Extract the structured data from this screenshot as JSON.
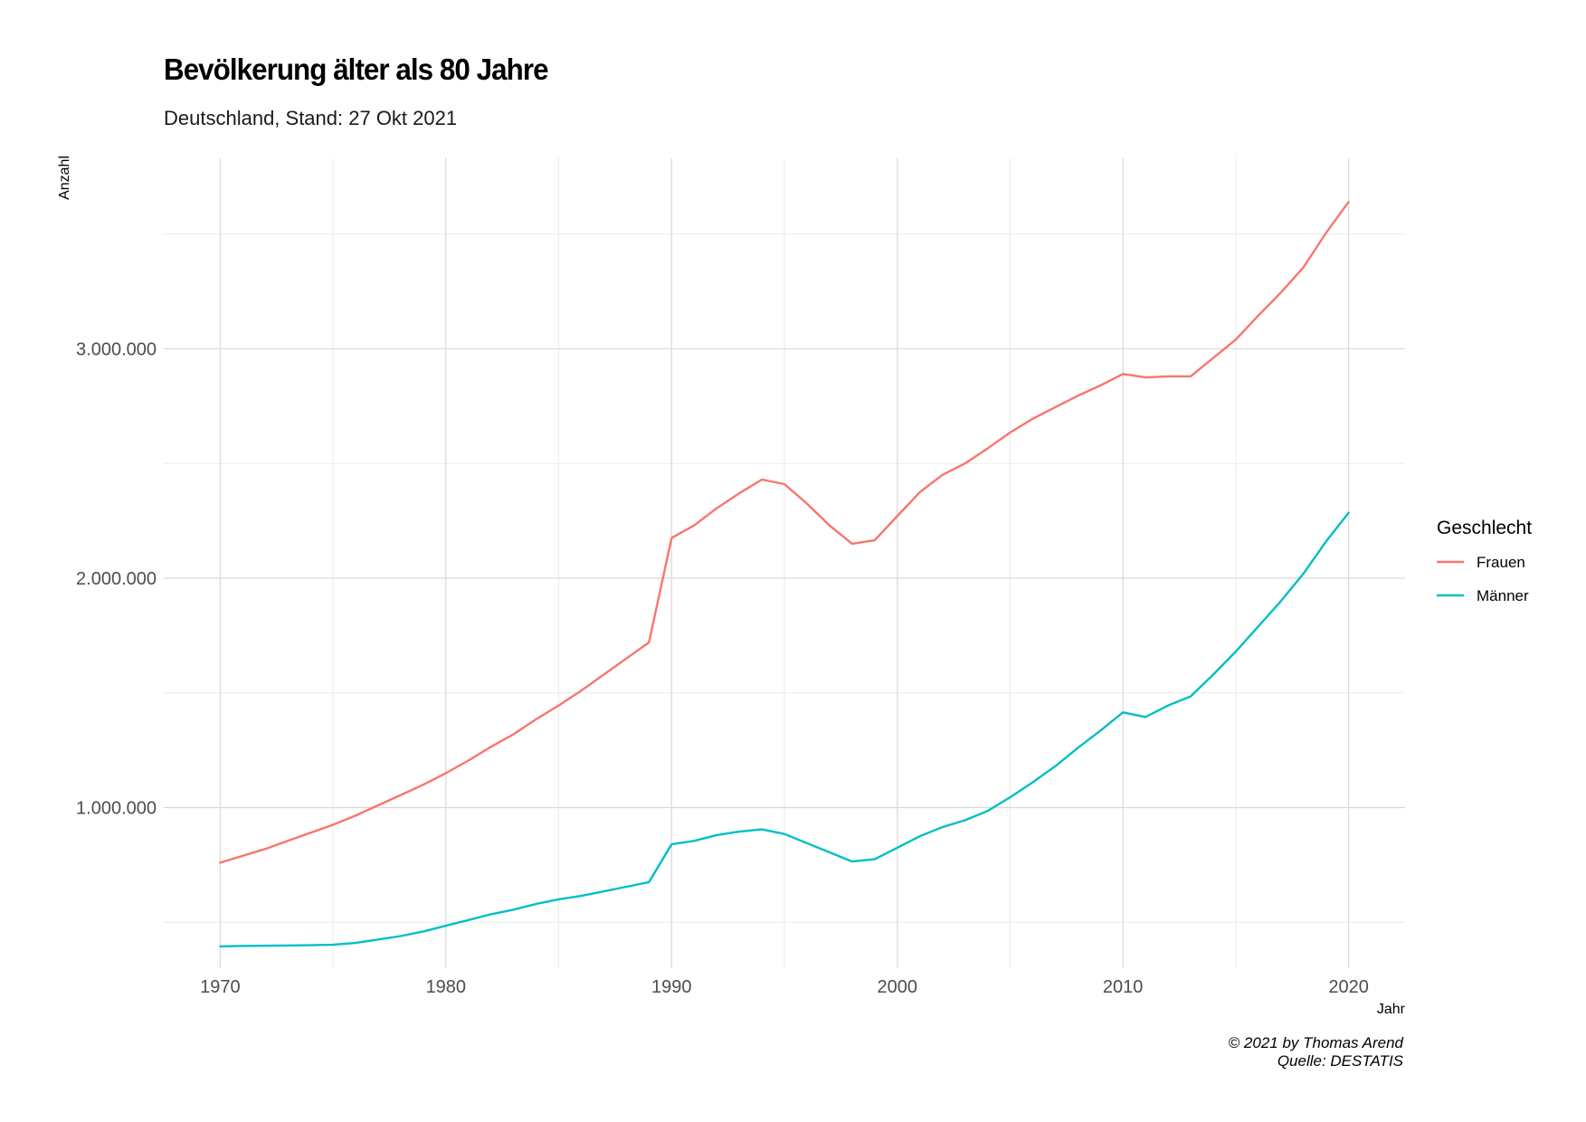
{
  "chart_data": {
    "type": "line",
    "title": "Bevölkerung älter als 80 Jahre",
    "subtitle": "Deutschland, Stand: 27 Okt 2021",
    "xlabel": "Jahr",
    "ylabel": "Anzahl",
    "xlim": [
      1967.5,
      2022.5
    ],
    "ylim": [
      300000,
      3830000
    ],
    "x_ticks": [
      1970,
      1980,
      1990,
      2000,
      2010,
      2020
    ],
    "x_tick_labels": [
      "1970",
      "1980",
      "1990",
      "2000",
      "2010",
      "2020"
    ],
    "y_ticks": [
      1000000,
      2000000,
      3000000
    ],
    "y_tick_labels": [
      "1.000.000",
      "2.000.000",
      "3.000.000"
    ],
    "grid": true,
    "legend": {
      "title": "Geschlecht",
      "position": "right"
    },
    "x": [
      1970,
      1971,
      1972,
      1973,
      1974,
      1975,
      1976,
      1977,
      1978,
      1979,
      1980,
      1981,
      1982,
      1983,
      1984,
      1985,
      1986,
      1987,
      1988,
      1989,
      1990,
      1991,
      1992,
      1993,
      1994,
      1995,
      1996,
      1997,
      1998,
      1999,
      2000,
      2001,
      2002,
      2003,
      2004,
      2005,
      2006,
      2007,
      2008,
      2009,
      2010,
      2011,
      2012,
      2013,
      2014,
      2015,
      2016,
      2017,
      2018,
      2019,
      2020
    ],
    "series": [
      {
        "name": "Frauen",
        "color": "#F8766D",
        "values": [
          760000,
          790000,
          820000,
          855000,
          890000,
          925000,
          965000,
          1010000,
          1055000,
          1100000,
          1150000,
          1205000,
          1265000,
          1320000,
          1385000,
          1445000,
          1510000,
          1580000,
          1650000,
          1720000,
          2175000,
          2230000,
          2305000,
          2370000,
          2430000,
          2410000,
          2325000,
          2230000,
          2150000,
          2165000,
          2270000,
          2375000,
          2450000,
          2500000,
          2565000,
          2635000,
          2695000,
          2745000,
          2795000,
          2840000,
          2890000,
          2875000,
          2880000,
          2880000,
          2960000,
          3040000,
          3145000,
          3245000,
          3355000,
          3505000,
          3640000
        ]
      },
      {
        "name": "Männer",
        "color": "#00BFC4",
        "values": [
          395000,
          397000,
          398000,
          399000,
          400000,
          402000,
          410000,
          425000,
          440000,
          460000,
          485000,
          510000,
          535000,
          555000,
          580000,
          600000,
          615000,
          635000,
          655000,
          675000,
          840000,
          855000,
          880000,
          895000,
          905000,
          885000,
          845000,
          805000,
          765000,
          775000,
          825000,
          875000,
          915000,
          945000,
          985000,
          1045000,
          1110000,
          1180000,
          1260000,
          1335000,
          1415000,
          1395000,
          1445000,
          1485000,
          1580000,
          1680000,
          1790000,
          1900000,
          2020000,
          2160000,
          2285000
        ]
      }
    ],
    "caption": [
      "© 2021 by Thomas Arend",
      "Quelle: DESTATIS"
    ]
  }
}
